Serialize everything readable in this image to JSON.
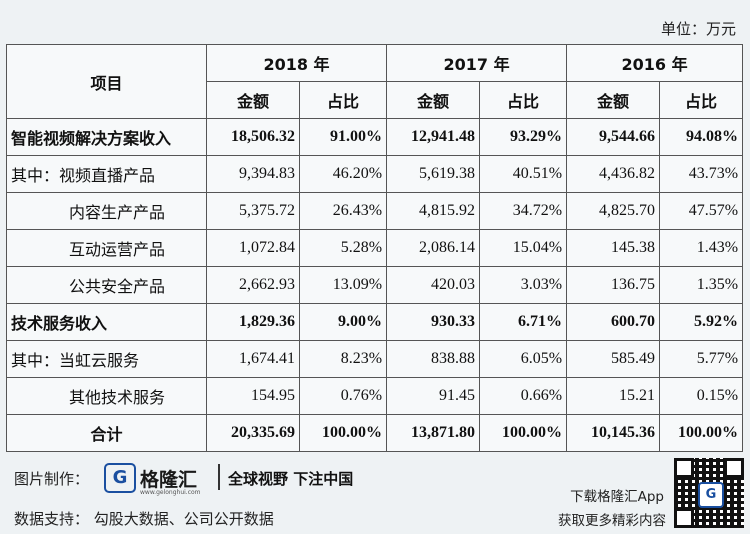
{
  "unit": "单位：万元",
  "table": {
    "header": {
      "item": "项目",
      "years": [
        "2018 年",
        "2017 年",
        "2016 年"
      ],
      "amount": "金额",
      "ratio": "占比"
    },
    "rows": [
      {
        "label": "智能视频解决方案收入",
        "bold": true,
        "sub": false,
        "values": [
          "18,506.32",
          "91.00%",
          "12,941.48",
          "93.29%",
          "9,544.66",
          "94.08%"
        ]
      },
      {
        "label": "其中：视频直播产品",
        "bold": false,
        "sub": false,
        "values": [
          "9,394.83",
          "46.20%",
          "5,619.38",
          "40.51%",
          "4,436.82",
          "43.73%"
        ]
      },
      {
        "label": "内容生产产品",
        "bold": false,
        "sub": true,
        "values": [
          "5,375.72",
          "26.43%",
          "4,815.92",
          "34.72%",
          "4,825.70",
          "47.57%"
        ]
      },
      {
        "label": "互动运营产品",
        "bold": false,
        "sub": true,
        "values": [
          "1,072.84",
          "5.28%",
          "2,086.14",
          "15.04%",
          "145.38",
          "1.43%"
        ]
      },
      {
        "label": "公共安全产品",
        "bold": false,
        "sub": true,
        "values": [
          "2,662.93",
          "13.09%",
          "420.03",
          "3.03%",
          "136.75",
          "1.35%"
        ]
      },
      {
        "label": "技术服务收入",
        "bold": true,
        "sub": false,
        "values": [
          "1,829.36",
          "9.00%",
          "930.33",
          "6.71%",
          "600.70",
          "5.92%"
        ]
      },
      {
        "label": "其中：当虹云服务",
        "bold": false,
        "sub": false,
        "values": [
          "1,674.41",
          "8.23%",
          "838.88",
          "6.05%",
          "585.49",
          "5.77%"
        ]
      },
      {
        "label": "其他技术服务",
        "bold": false,
        "sub": true,
        "values": [
          "154.95",
          "0.76%",
          "91.45",
          "0.66%",
          "15.21",
          "0.15%"
        ]
      },
      {
        "label": "合计",
        "bold": true,
        "sub": false,
        "center": true,
        "values": [
          "20,335.69",
          "100.00%",
          "13,871.80",
          "100.00%",
          "10,145.36",
          "100.00%"
        ]
      }
    ]
  },
  "footer": {
    "made_by_label": "图片制作：",
    "logo_letter": "G",
    "logo_name": "格隆汇",
    "logo_url": "www.gelonghui.com",
    "slogan": "全球视野 下注中国",
    "data_support": "数据支持：  勾股大数据、公司公开数据",
    "download_line1": "下载格隆汇App",
    "download_line2": "获取更多精彩内容",
    "qr_letter": "G"
  }
}
